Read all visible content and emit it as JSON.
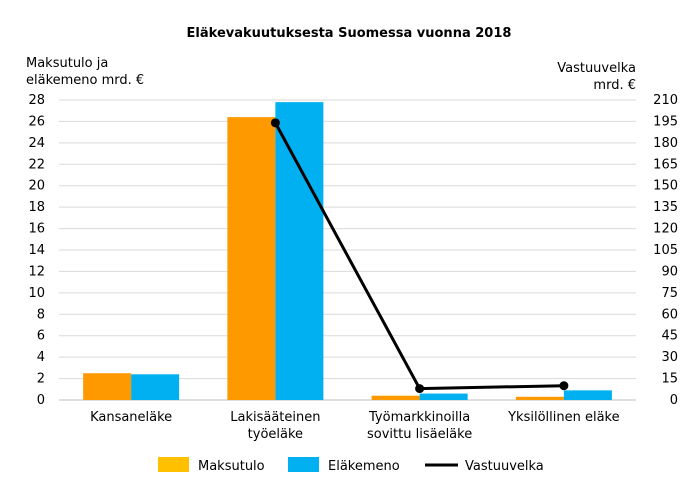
{
  "chart_data": {
    "type": "bar",
    "title": "Eläkevakuutuksesta Suomessa vuonna 2018",
    "ylabel": [
      "Maksutulo ja",
      "eläkemeno mrd. €"
    ],
    "y2label": [
      "Vastuuvelka",
      "mrd. €"
    ],
    "categories": [
      [
        "Kansaneläke"
      ],
      [
        "Lakisääteinen",
        "työeläke"
      ],
      [
        "Työmarkkinoilla",
        "sovittu lisäeläke"
      ],
      [
        "Yksilöllinen eläke"
      ]
    ],
    "ylim": [
      0,
      28
    ],
    "yticks": [
      0,
      2,
      4,
      6,
      8,
      10,
      12,
      14,
      16,
      18,
      20,
      22,
      24,
      26,
      28
    ],
    "y2lim": [
      0,
      210
    ],
    "y2ticks": [
      0,
      15,
      30,
      45,
      60,
      75,
      90,
      105,
      120,
      135,
      150,
      165,
      180,
      195,
      210
    ],
    "grid": true,
    "legend_position": "bottom",
    "series": [
      {
        "name": "Maksutulo",
        "kind": "bar",
        "axis": "left",
        "color": "#FF9900",
        "legend_color": "#FFC000",
        "values": [
          2.5,
          26.4,
          0.4,
          0.3
        ]
      },
      {
        "name": "Eläkemeno",
        "kind": "bar",
        "axis": "left",
        "color": "#00B0F0",
        "legend_color": "#00B0F0",
        "values": [
          2.4,
          27.8,
          0.6,
          0.9
        ]
      },
      {
        "name": "Vastuuvelka",
        "kind": "line",
        "axis": "right",
        "color": "#000000",
        "legend_color": "#000000",
        "values": [
          null,
          194,
          8,
          10
        ]
      }
    ]
  }
}
